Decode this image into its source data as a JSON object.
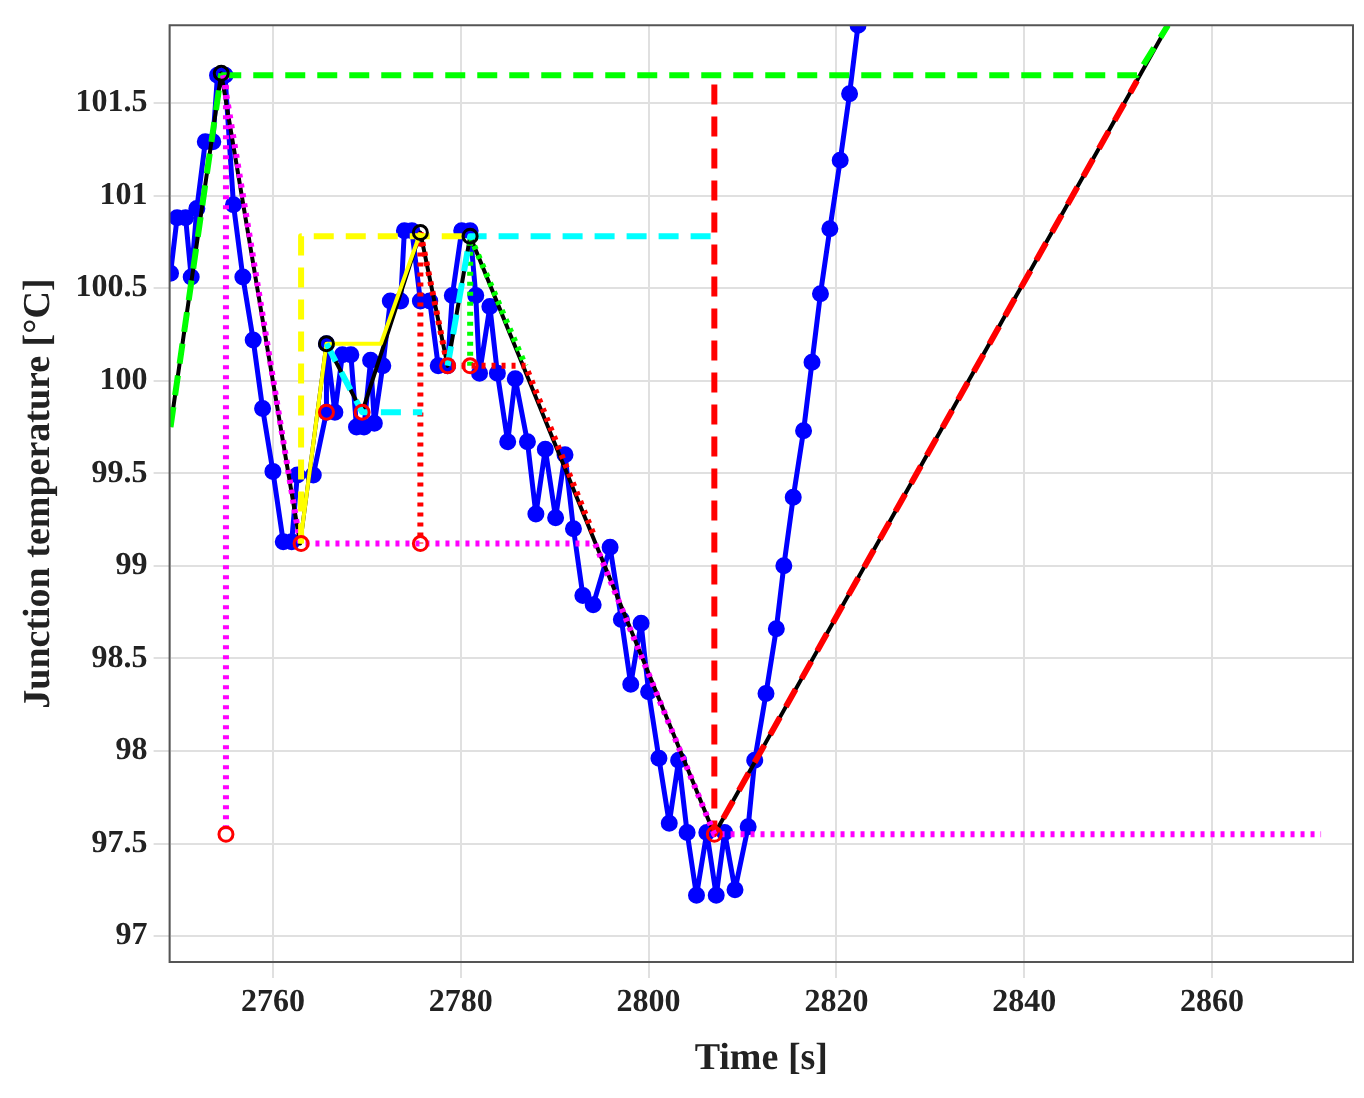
{
  "chart_data": {
    "type": "line",
    "xlabel": "Time [s]",
    "ylabel": "Junction temperature [°C]",
    "xlim": [
      2749,
      2875
    ],
    "ylim": [
      96.86,
      101.92
    ],
    "xticks": [
      2760,
      2780,
      2800,
      2820,
      2840,
      2860
    ],
    "yticks": [
      97,
      97.5,
      98,
      98.5,
      99,
      99.5,
      100,
      100.5,
      101,
      101.5
    ],
    "grid": true,
    "legend": false,
    "series": [
      {
        "color": "#0000ff",
        "marker": "circle",
        "line_style": "solid",
        "x": [
          2749.1,
          2749.8,
          2750.7,
          2751.3,
          2751.9,
          2752.8,
          2753.6,
          2754.1,
          2754.9,
          2755.8,
          2756.8,
          2757.9,
          2758.9,
          2760,
          2761.1,
          2762,
          2762.6,
          2764.3,
          2765.7,
          2765.7,
          2766.6,
          2767.4,
          2768.3,
          2768.9,
          2769.7,
          2770.4,
          2770.8,
          2771.7,
          2772.5,
          2773.6,
          2774,
          2774.8,
          2775.7,
          2776.7,
          2777.6,
          2778.6,
          2779.1,
          2780.1,
          2781,
          2781.6,
          2782,
          2783.1,
          2783.9,
          2785,
          2785.8,
          2787.1,
          2788,
          2789,
          2790.1,
          2791.1,
          2792,
          2793,
          2794.1,
          2795.9,
          2797.1,
          2798.1,
          2799.2,
          2800,
          2801.1,
          2802.2,
          2803.2,
          2804.1,
          2805.1,
          2806.2,
          2807.2,
          2808.1,
          2809.2,
          2810.6,
          2811.3,
          2812.5,
          2813.6,
          2814.4,
          2815.4,
          2816.5,
          2817.4,
          2818.3,
          2819.3,
          2820.4,
          2821.4,
          2822.3
        ],
        "values": [
          100.58,
          100.88,
          100.88,
          100.56,
          100.93,
          101.29,
          101.29,
          101.65,
          101.65,
          100.95,
          100.56,
          100.22,
          99.85,
          99.51,
          99.13,
          99.13,
          99.49,
          99.49,
          99.83,
          100.2,
          99.83,
          100.14,
          100.14,
          99.75,
          99.75,
          100.11,
          99.77,
          100.08,
          100.43,
          100.43,
          100.81,
          100.81,
          100.43,
          100.43,
          100.08,
          100.08,
          100.46,
          100.81,
          100.81,
          100.46,
          100.04,
          100.4,
          100.04,
          99.67,
          100.01,
          99.67,
          99.28,
          99.63,
          99.26,
          99.6,
          99.2,
          98.84,
          98.79,
          99.1,
          98.71,
          98.36,
          98.69,
          98.32,
          97.96,
          97.61,
          97.95,
          97.56,
          97.22,
          97.56,
          97.22,
          97.56,
          97.25,
          97.59,
          97.95,
          98.31,
          98.66,
          99.0,
          99.37,
          99.73,
          100.1,
          100.47,
          100.82,
          101.19,
          101.55,
          101.92
        ]
      },
      {
        "color": "#000000",
        "marker": "none",
        "line_style": "solid",
        "x": [
          2749.1,
          2754.5,
          2762.9,
          2765.7,
          2769.5,
          2775.7,
          2778.6,
          2781,
          2807,
          2855.3
        ],
        "values": [
          99.75,
          101.66,
          99.12,
          100.2,
          99.83,
          100.8,
          100.08,
          100.78,
          97.55,
          101.92
        ]
      },
      {
        "color": "#00ff00",
        "marker": "none",
        "line_style": "dashed",
        "x": [
          2749.1,
          2754.5
        ],
        "values": [
          99.75,
          101.66
        ]
      },
      {
        "color": "#00ff00",
        "marker": "none",
        "line_style": "dashed",
        "x": [
          2754.5,
          2852,
          2855.3
        ],
        "values": [
          101.65,
          101.65,
          101.92
        ]
      },
      {
        "color": "#00ff00",
        "marker": "none",
        "line_style": "dotted",
        "x": [
          2781,
          2781,
          2786.9
        ],
        "values": [
          100.08,
          100.78,
          100.08
        ]
      },
      {
        "color": "#ff0000",
        "marker": "none",
        "line_style": "dashed",
        "x": [
          2807,
          2807,
          2852
        ],
        "values": [
          101.6,
          97.55,
          101.62
        ]
      },
      {
        "color": "#ff0000",
        "marker": "none",
        "line_style": "dotted",
        "x": [
          2775.7,
          2778.6,
          2786.9,
          2794.3
        ],
        "values": [
          100.8,
          100.08,
          100.08,
          99.15
        ]
      },
      {
        "color": "#ff0000",
        "marker": "none",
        "line_style": "dotted",
        "x": [
          2775.7,
          2775.7
        ],
        "values": [
          100.8,
          99.12
        ]
      },
      {
        "color": "#ff00ff",
        "marker": "none",
        "line_style": "dotted",
        "x": [
          2755,
          2755
        ],
        "values": [
          101.65,
          97.55
        ]
      },
      {
        "color": "#ff00ff",
        "marker": "none",
        "line_style": "dotted",
        "x": [
          2754.7,
          2762.9,
          2794.3,
          2807,
          2871.6
        ],
        "values": [
          101.65,
          99.12,
          99.12,
          97.55,
          97.55
        ]
      },
      {
        "color": "#ffff00",
        "marker": "none",
        "line_style": "dashed",
        "x": [
          2763,
          2763,
          2781
        ],
        "values": [
          99.12,
          100.78,
          100.78
        ]
      },
      {
        "color": "#ffff00",
        "marker": "none",
        "line_style": "solid",
        "x": [
          2762.9,
          2765.7,
          2771.5,
          2775.7
        ],
        "values": [
          99.12,
          100.2,
          100.2,
          100.8
        ]
      },
      {
        "color": "#00ffff",
        "marker": "none",
        "line_style": "dashed",
        "x": [
          2765.7,
          2769.5,
          2775.9
        ],
        "values": [
          100.2,
          99.83,
          99.83
        ]
      },
      {
        "color": "#00ffff",
        "marker": "none",
        "line_style": "dashed",
        "x": [
          2778.6,
          2781,
          2807
        ],
        "values": [
          100.08,
          100.78,
          100.78
        ]
      },
      {
        "type": "scatter",
        "color": "#ff0000",
        "marker": "circle",
        "x": [
          2755,
          2763,
          2775.7,
          2765.7,
          2769.5,
          2778.6,
          2781,
          2807
        ],
        "values": [
          97.55,
          99.12,
          99.12,
          99.83,
          99.83,
          100.08,
          100.08,
          97.55
        ]
      },
      {
        "type": "scatter",
        "color": "#000000",
        "marker": "circle",
        "x": [
          2754.5,
          2765.7,
          2775.7,
          2781
        ],
        "values": [
          101.66,
          100.2,
          100.8,
          100.78
        ]
      }
    ]
  }
}
